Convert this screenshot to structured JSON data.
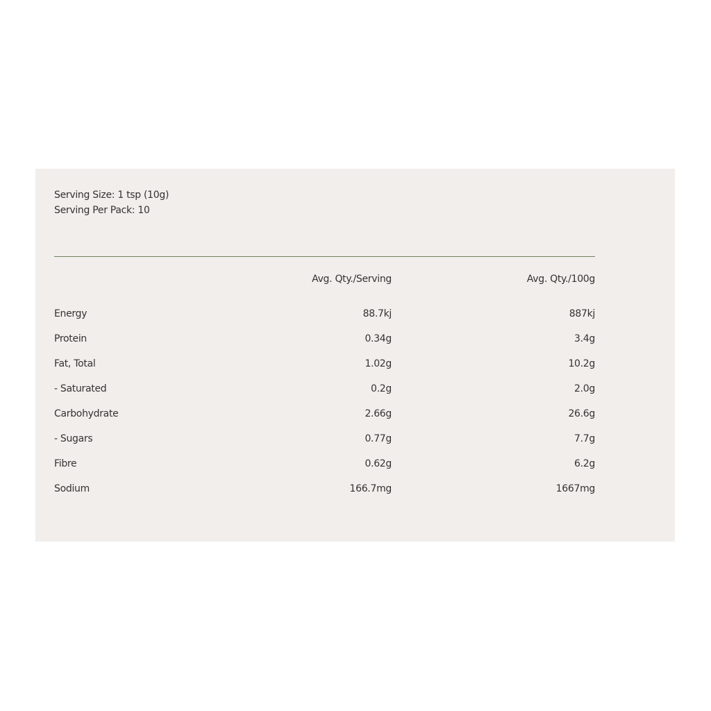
{
  "serving_size": "Serving Size: 1 tsp (10g)",
  "servings_per_pack": "Serving Per Pack: 10",
  "colors": {
    "panel": "#f1eeeb",
    "rule": "#6f8060",
    "text": "#333333"
  },
  "table": {
    "headers": [
      "",
      "Avg. Qty./Serving",
      "Avg. Qty./100g"
    ],
    "rows": [
      [
        "Energy",
        "88.7kj",
        "887kj"
      ],
      [
        "Protein",
        "0.34g",
        "3.4g"
      ],
      [
        "Fat, Total",
        "1.02g",
        "10.2g"
      ],
      [
        "- Saturated",
        "0.2g",
        "2.0g"
      ],
      [
        "Carbohydrate",
        "2.66g",
        "26.6g"
      ],
      [
        "- Sugars",
        "0.77g",
        "7.7g"
      ],
      [
        "Fibre",
        "0.62g",
        "6.2g"
      ],
      [
        "Sodium",
        "166.7mg",
        "1667mg"
      ]
    ]
  }
}
